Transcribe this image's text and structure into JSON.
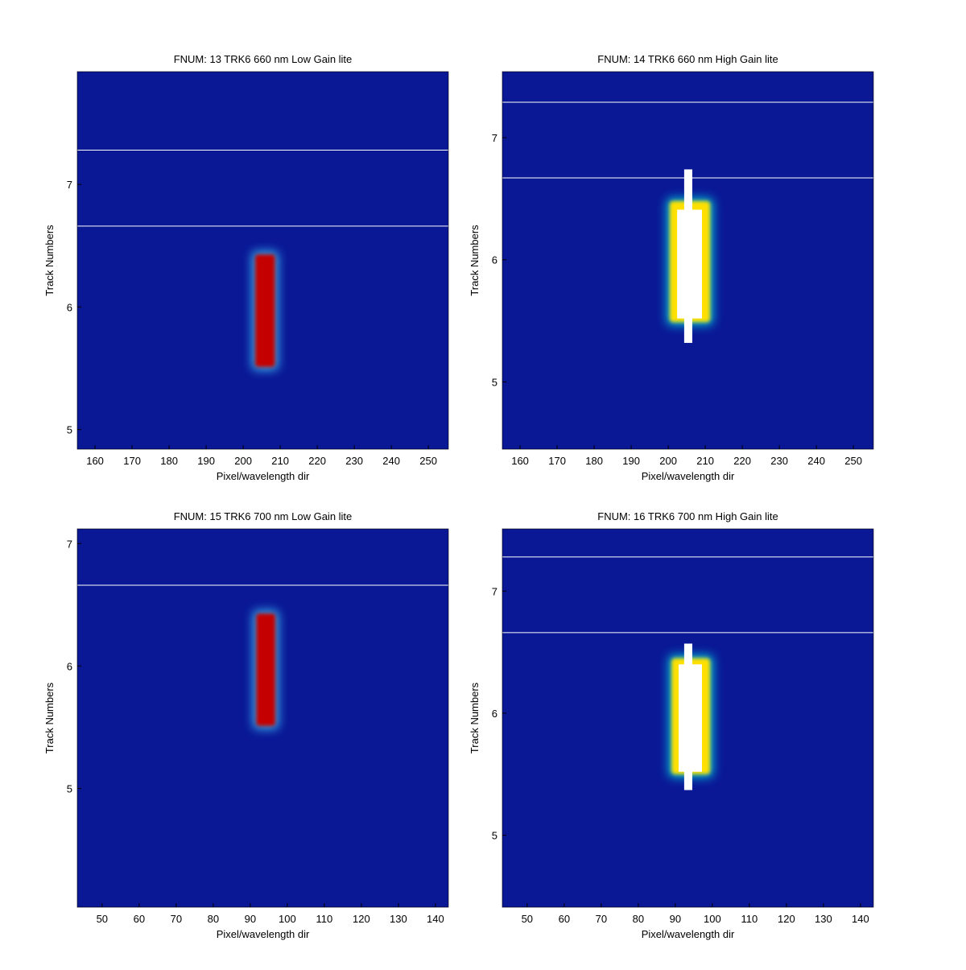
{
  "chart_data": [
    {
      "type": "heatmap",
      "title": "FNUM: 13 TRK6 660 nm Low Gain lite",
      "xlabel": "Pixel/wavelength dir",
      "ylabel": "Track Numbers",
      "xlim": [
        155.2,
        255.4
      ],
      "ylim": [
        4.84,
        7.92
      ],
      "xticks": [
        160,
        170,
        180,
        190,
        200,
        210,
        220,
        230,
        240,
        250
      ],
      "yticks": [
        5,
        6,
        7
      ],
      "background": "#0a1896",
      "hlines": [
        7.28,
        6.66
      ],
      "line_color": "#ffffff",
      "spot": {
        "x": [
          203.2,
          208.6
        ],
        "y": [
          5.51,
          6.43
        ],
        "color": "#c40000",
        "glow": "#3fd0ff"
      }
    },
    {
      "type": "heatmap",
      "title": "FNUM: 14 TRK6 660 nm High Gain lite",
      "xlabel": "Pixel/wavelength dir",
      "ylabel": "Track Numbers",
      "xlim": [
        155.2,
        255.4
      ],
      "ylim": [
        4.45,
        7.54
      ],
      "xticks": [
        160,
        170,
        180,
        190,
        200,
        210,
        220,
        230,
        240,
        250
      ],
      "yticks": [
        5,
        6,
        7
      ],
      "background": "#0a1896",
      "hlines": [
        7.29,
        6.67
      ],
      "line_color": "#ffffff",
      "spot": {
        "x": [
          200.4,
          211.3
        ],
        "y": [
          5.49,
          6.48
        ],
        "color": "#ffe000",
        "glow": "#00e0e0"
      },
      "saturation": {
        "x": [
          202.4,
          209.1
        ],
        "y": [
          5.52,
          6.41
        ],
        "column_x": [
          204.3,
          206.5
        ],
        "column_y": [
          5.32,
          6.74
        ],
        "color": "#ffffff"
      }
    },
    {
      "type": "heatmap",
      "title": "FNUM: 15 TRK6 700 nm Low Gain lite",
      "xlabel": "Pixel/wavelength dir",
      "ylabel": "Track Numbers",
      "xlim": [
        43.3,
        143.5
      ],
      "ylim": [
        4.03,
        7.12
      ],
      "xticks": [
        50,
        60,
        70,
        80,
        90,
        100,
        110,
        120,
        130,
        140
      ],
      "yticks": [
        5,
        6,
        7
      ],
      "background": "#0a1896",
      "hlines": [
        6.66
      ],
      "line_color": "#ffffff",
      "spot": {
        "x": [
          91.6,
          96.8
        ],
        "y": [
          5.51,
          6.43
        ],
        "color": "#c40000",
        "glow": "#3fd0ff"
      }
    },
    {
      "type": "heatmap",
      "title": "FNUM: 16 TRK6 700 nm High Gain lite",
      "xlabel": "Pixel/wavelength dir",
      "ylabel": "Track Numbers",
      "xlim": [
        43.3,
        143.5
      ],
      "ylim": [
        4.41,
        7.51
      ],
      "xticks": [
        50,
        60,
        70,
        80,
        90,
        100,
        110,
        120,
        130,
        140
      ],
      "yticks": [
        5,
        6,
        7
      ],
      "background": "#0a1896",
      "hlines": [
        7.28,
        6.66
      ],
      "line_color": "#ffffff",
      "spot": {
        "x": [
          89.0,
          99.4
        ],
        "y": [
          5.5,
          6.45
        ],
        "color": "#ffe000",
        "glow": "#00e0e0"
      },
      "saturation": {
        "x": [
          90.9,
          97.2
        ],
        "y": [
          5.52,
          6.4
        ],
        "column_x": [
          92.4,
          94.6
        ],
        "column_y": [
          5.37,
          6.57
        ],
        "color": "#ffffff"
      }
    }
  ]
}
